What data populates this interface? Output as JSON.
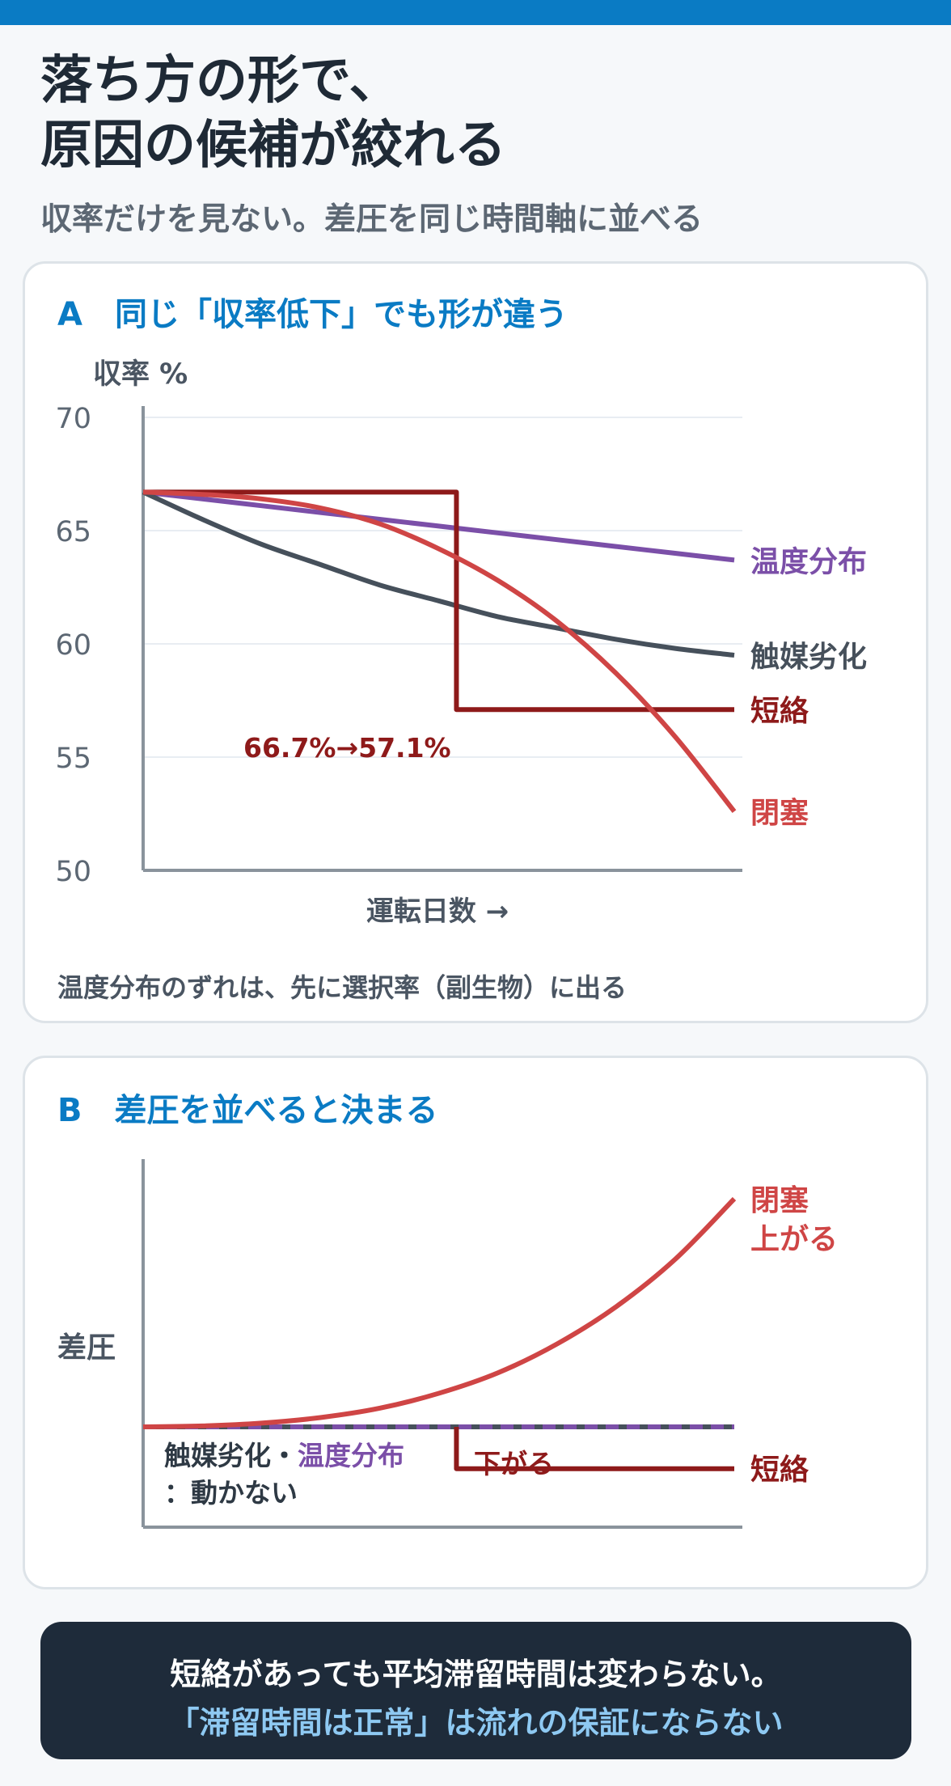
{
  "header": {
    "title_line1": "落ち方の形で、",
    "title_line2": "原因の候補が絞れる",
    "subtitle": "収率だけを見ない。差圧を同じ時間軸に並べる"
  },
  "colors": {
    "accent": "#0a7bc4",
    "temperature": "#7b4fa8",
    "catalyst": "#46505b",
    "short": "#8e1a1a",
    "clog": "#cf4545"
  },
  "chart_data": [
    {
      "type": "line",
      "title": "A　同じ「収率低下」でも形が違う",
      "ylabel": "収率 %",
      "xlabel": "運転日数 →",
      "ylim": [
        50,
        70
      ],
      "yticks": [
        "70",
        "65",
        "60",
        "55",
        "50"
      ],
      "x": [
        0,
        10,
        20,
        30,
        40,
        50,
        60,
        70,
        80,
        90,
        100
      ],
      "series": [
        {
          "name": "温度分布",
          "values": [
            66.7,
            66.4,
            66.1,
            65.8,
            65.5,
            65.2,
            64.9,
            64.6,
            64.3,
            64.0,
            63.7
          ]
        },
        {
          "name": "触媒劣化",
          "values": [
            66.7,
            65.5,
            64.4,
            63.5,
            62.6,
            61.9,
            61.2,
            60.7,
            60.2,
            59.8,
            59.5
          ]
        },
        {
          "name": "短絡",
          "values": [
            66.7,
            66.7,
            66.7,
            66.7,
            66.7,
            57.1,
            57.1,
            57.1,
            57.1,
            57.1,
            57.1
          ],
          "step_at": 53
        },
        {
          "name": "閉塞",
          "values": [
            66.7,
            66.6,
            66.4,
            66.0,
            65.3,
            64.2,
            62.8,
            61.0,
            58.7,
            55.9,
            52.6
          ]
        }
      ],
      "annotation": "66.7%→57.1%",
      "note": "温度分布のずれは、先に選択率（副生物）に出る"
    },
    {
      "type": "line",
      "title": "B　差圧を並べると決まる",
      "ylabel": "差圧",
      "baseline": 0,
      "ylim": [
        -1,
        3
      ],
      "x": [
        0,
        10,
        20,
        30,
        40,
        50,
        60,
        70,
        80,
        90,
        100
      ],
      "series": [
        {
          "name": "閉塞",
          "values": [
            0,
            0.01,
            0.04,
            0.1,
            0.2,
            0.36,
            0.58,
            0.89,
            1.29,
            1.8,
            2.45
          ],
          "label": "上がる"
        },
        {
          "name": "短絡",
          "values": [
            0,
            0,
            0,
            0,
            0,
            -0.45,
            -0.45,
            -0.45,
            -0.45,
            -0.45,
            -0.45
          ],
          "label": "下がる",
          "step_at": 53
        },
        {
          "name": "触媒劣化・温度分布",
          "values": [
            0,
            0,
            0,
            0,
            0,
            0,
            0,
            0,
            0,
            0,
            0
          ]
        }
      ],
      "flat_label_a": "触媒劣化",
      "flat_label_sep": "・",
      "flat_label_b": "温度分布",
      "flat_label_2": "：動かない"
    }
  ],
  "conclusion": {
    "line1": "短絡があっても平均滞留時間は変わらない。",
    "line2": "「滞留時間は正常」は流れの保証にならない"
  }
}
